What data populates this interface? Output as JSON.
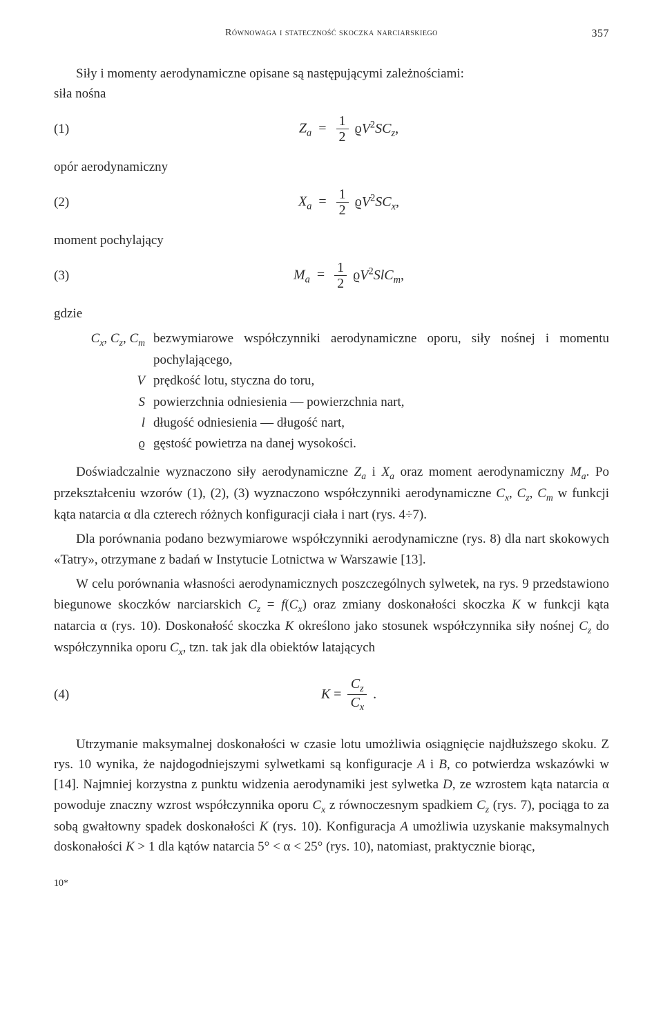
{
  "header": {
    "running_head": "Równowaga i stateczność skoczka narciarskiego",
    "page_number": "357"
  },
  "intro": {
    "line1": "Siły i momenty aerodynamiczne opisane są następującymi zależnościami:",
    "line2": "siła nośna"
  },
  "eq1": {
    "tag": "(1)",
    "lhs_var": "Z",
    "lhs_sub": "a",
    "frac_num": "1",
    "frac_den": "2",
    "rhs_tail_html": "ϱ<span class=\"it\">V</span><span class=\"sup\">2</span><span class=\"it\">SC</span><span class=\"sub\">z</span>,"
  },
  "label2": "opór aerodynamiczny",
  "eq2": {
    "tag": "(2)",
    "lhs_var": "X",
    "lhs_sub": "a",
    "frac_num": "1",
    "frac_den": "2",
    "rhs_tail_html": "ϱ<span class=\"it\">V</span><span class=\"sup\">2</span><span class=\"it\">SC</span><span class=\"sub\">x</span>,"
  },
  "label3": "moment pochylający",
  "eq3": {
    "tag": "(3)",
    "lhs_var": "M",
    "lhs_sub": "a",
    "frac_num": "1",
    "frac_den": "2",
    "rhs_tail_html": "ϱ<span class=\"it\">V</span><span class=\"sup\">2</span><span class=\"it\">SlC</span><span class=\"sub\">m</span>,"
  },
  "defs_header": "gdzie",
  "defs": [
    {
      "sym_html": "<span class=\"it\">C</span><span class=\"sub\">x</span>, <span class=\"it\">C</span><span class=\"sub\">z</span>, <span class=\"it\">C</span><span class=\"sub\">m</span>",
      "text": "bezwymiarowe współczynniki aerodynamiczne oporu, siły nośnej i momentu pochylającego,"
    },
    {
      "sym_html": "<span class=\"it\">V</span>",
      "text": "prędkość lotu, styczna do toru,"
    },
    {
      "sym_html": "<span class=\"it\">S</span>",
      "text": "powierzchnia odniesienia — powierzchnia nart,"
    },
    {
      "sym_html": "<span class=\"it\">l</span>",
      "text": "długość odniesienia — długość nart,"
    },
    {
      "sym_html": "ϱ",
      "text": "gęstość powietrza na danej wysokości."
    }
  ],
  "p1_html": "Doświadczalnie wyznaczono siły aerodynamiczne <span class=\"it\">Z</span><span class=\"sub\">a</span> i <span class=\"it\">X</span><span class=\"sub\">a</span> oraz moment aerodynamiczny <span class=\"it\">M</span><span class=\"sub\">a</span>. Po przekształceniu wzorów (1), (2), (3) wyznaczono współczynniki aerodynamiczne <span class=\"it\">C</span><span class=\"sub\">x</span>, <span class=\"it\">C</span><span class=\"sub\">z</span>, <span class=\"it\">C</span><span class=\"sub\">m</span> w funkcji kąta natarcia α dla czterech różnych konfiguracji ciała i nart (rys. 4÷7).",
  "p2_html": "Dla porównania podano bezwymiarowe współczynniki aerodynamiczne (rys. 8) dla nart skokowych «Tatry», otrzymane z badań w Instytucie Lotnictwa w Warszawie [13].",
  "p3_html": "W celu porównania własności aerodynamicznych poszczególnych sylwetek, na rys. 9 przedstawiono biegunowe skoczków narciarskich <span class=\"it\">C</span><span class=\"sub\">z</span> = <span class=\"it\">f</span>(<span class=\"it\">C</span><span class=\"sub\">x</span>) oraz zmiany doskonałości skoczka <span class=\"it\">K</span> w funkcji kąta natarcia α (rys. 10). Doskonałość skoczka <span class=\"it\">K</span> określono jako stosunek współczynnika siły nośnej <span class=\"it\">C</span><span class=\"sub\">z</span> do współczynnika oporu <span class=\"it\">C</span><span class=\"sub\">x</span>, tzn. tak jak dla obiektów latających",
  "eq4": {
    "tag": "(4)",
    "lhs_html": "<span class=\"it\">K</span> = ",
    "num_html": "<span class=\"it\">C</span><span class=\"sub\">z</span>",
    "den_html": "<span class=\"it\">C</span><span class=\"sub\">x</span>",
    "trail": "."
  },
  "p4_html": "Utrzymanie maksymalnej doskonałości w czasie lotu umożliwia osiągnięcie najdłuższego skoku. Z rys. 10 wynika, że najdogodniejszymi sylwetkami są konfiguracje <span class=\"it\">A</span> i <span class=\"it\">B</span>, co potwierdza wskazówki w [14]. Najmniej korzystna z punktu widzenia aerodynamiki jest sylwetka <span class=\"it\">D</span>, ze wzrostem kąta natarcia α powoduje znaczny wzrost współczynnika oporu <span class=\"it\">C</span><span class=\"sub\">x</span> z równoczesnym spadkiem <span class=\"it\">C</span><span class=\"sub\">z</span> (rys. 7), pociąga to za sobą gwałtowny spadek doskonałości <span class=\"it\">K</span> (rys. 10). Konfiguracja <span class=\"it\">A</span> umożliwia uzyskanie maksymalnych doskonałości <span class=\"it\">K</span> &gt; 1 dla kątów natarcia 5° &lt; α &lt; 25° (rys. 10), natomiast, praktycznie biorąc,",
  "footer_mark": "10*"
}
